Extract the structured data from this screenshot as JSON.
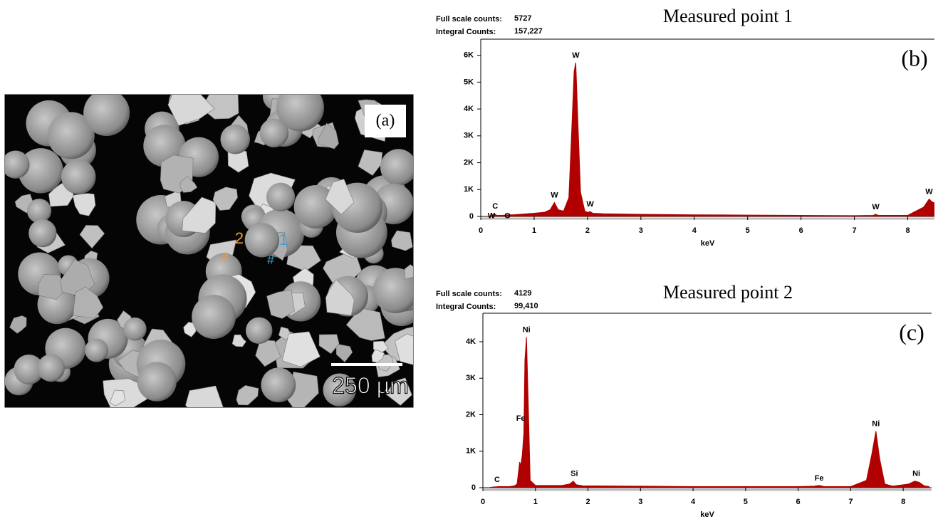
{
  "image": {
    "panel_label": "(a)",
    "points": [
      "1",
      "2"
    ],
    "scale_bar": "250 µm"
  },
  "chart_data": [
    {
      "type": "area",
      "title": "Measured point 1",
      "panel_label": "(b)",
      "full_scale_label": "Full scale counts:",
      "full_scale_counts": 5727,
      "integral_label": "Integral Counts:",
      "integral_counts": "157,227",
      "xlabel": "keV",
      "color": "#b00000",
      "x": [
        0.1,
        0.2,
        0.25,
        0.3,
        0.4,
        0.5,
        0.6,
        0.8,
        1.0,
        1.2,
        1.3,
        1.38,
        1.45,
        1.55,
        1.65,
        1.7,
        1.75,
        1.78,
        1.82,
        1.87,
        1.95,
        2.0,
        2.05,
        2.1,
        2.3,
        3,
        4,
        5,
        6,
        7,
        7.35,
        7.4,
        7.45,
        8,
        8.3,
        8.4,
        8.45,
        8.5
      ],
      "values": [
        0,
        30,
        100,
        40,
        40,
        60,
        60,
        90,
        120,
        160,
        250,
        520,
        250,
        200,
        700,
        3000,
        5400,
        5727,
        3500,
        900,
        200,
        150,
        180,
        120,
        100,
        80,
        60,
        50,
        40,
        30,
        40,
        80,
        40,
        40,
        350,
        650,
        550,
        500
      ],
      "peaks": [
        {
          "label": "C",
          "x": 0.27,
          "y": 100
        },
        {
          "label": "W",
          "x": 0.2,
          "y": -250
        },
        {
          "label": "O",
          "x": 0.5,
          "y": -250
        },
        {
          "label": "W",
          "x": 1.38,
          "y": 520
        },
        {
          "label": "W",
          "x": 1.78,
          "y": 5727
        },
        {
          "label": "W",
          "x": 2.05,
          "y": 180
        },
        {
          "label": "W",
          "x": 7.4,
          "y": 80
        },
        {
          "label": "W",
          "x": 8.4,
          "y": 650
        }
      ],
      "xlim": [
        0,
        8.5
      ],
      "ylim": [
        0,
        6600
      ],
      "xticks": [
        0,
        1,
        2,
        3,
        4,
        5,
        6,
        7,
        8
      ],
      "yticks": [
        0,
        {
          "value": 1000,
          "label": "1K"
        },
        {
          "value": 2000,
          "label": "2K"
        },
        {
          "value": 3000,
          "label": "3K"
        },
        {
          "value": 4000,
          "label": "4K"
        },
        {
          "value": 5000,
          "label": "5K"
        },
        {
          "value": 6000,
          "label": "6K"
        }
      ]
    },
    {
      "type": "area",
      "title": "Measured point 2",
      "panel_label": "(c)",
      "full_scale_label": "Full scale counts:",
      "full_scale_counts": 4129,
      "integral_label": "Integral Counts:",
      "integral_counts": "99,410",
      "xlabel": "keV",
      "color": "#b00000",
      "x": [
        0.1,
        0.2,
        0.3,
        0.5,
        0.6,
        0.65,
        0.7,
        0.72,
        0.75,
        0.78,
        0.8,
        0.83,
        0.86,
        0.9,
        1.0,
        1.5,
        1.65,
        1.72,
        1.78,
        1.9,
        3,
        4,
        5,
        6,
        6.3,
        6.4,
        6.5,
        7,
        7.3,
        7.4,
        7.48,
        7.55,
        7.65,
        7.8,
        8.1,
        8.22,
        8.3,
        8.4,
        8.5
      ],
      "values": [
        0,
        20,
        30,
        30,
        50,
        100,
        700,
        600,
        900,
        1500,
        3500,
        4129,
        2500,
        200,
        60,
        60,
        100,
        180,
        80,
        50,
        40,
        30,
        30,
        30,
        40,
        60,
        30,
        30,
        200,
        900,
        1550,
        800,
        100,
        40,
        100,
        180,
        150,
        50,
        30
      ],
      "peaks": [
        {
          "label": "C",
          "x": 0.27,
          "y": 20
        },
        {
          "label": "Fe",
          "x": 0.72,
          "y": 1700
        },
        {
          "label": "Ni",
          "x": 0.83,
          "y": 4129
        },
        {
          "label": "Si",
          "x": 1.74,
          "y": 180
        },
        {
          "label": "Fe",
          "x": 6.4,
          "y": 60
        },
        {
          "label": "Ni",
          "x": 7.48,
          "y": 1550
        },
        {
          "label": "Ni",
          "x": 8.25,
          "y": 180
        }
      ],
      "xlim": [
        0,
        8.54
      ],
      "ylim": [
        0,
        4780
      ],
      "xticks": [
        0,
        1,
        2,
        3,
        4,
        5,
        6,
        7,
        8
      ],
      "yticks": [
        0,
        {
          "value": 1000,
          "label": "1K"
        },
        {
          "value": 2000,
          "label": "2K"
        },
        {
          "value": 3000,
          "label": "3K"
        },
        {
          "value": 4000,
          "label": "4K"
        }
      ]
    }
  ]
}
